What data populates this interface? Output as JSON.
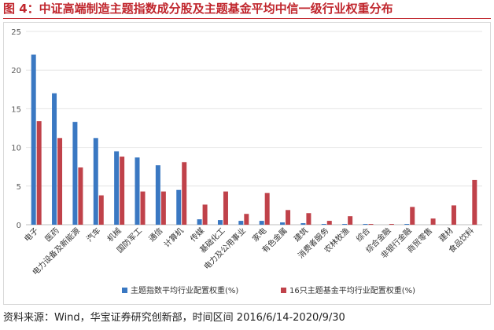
{
  "figure": {
    "title": "图 4：中证高端制造主题指数成分股及主题基金平均中信一级行业权重分布",
    "source": "资料来源：Wind，华宝证券研究创新部，时间区间 2016/6/14-2020/9/30"
  },
  "chart_data": {
    "type": "bar",
    "categories": [
      "电子",
      "医药",
      "电力设备及新能源",
      "汽车",
      "机械",
      "国防军工",
      "通信",
      "计算机",
      "传媒",
      "基础化工",
      "电力及公用事业",
      "家电",
      "有色金属",
      "建筑",
      "消费者服务",
      "农林牧渔",
      "综合",
      "综合金融",
      "非银行金融",
      "商贸零售",
      "建材",
      "食品饮料"
    ],
    "series": [
      {
        "name": "主题指数平均行业配置权重(%)",
        "color": "#3a78c2",
        "values": [
          22.0,
          17.0,
          13.3,
          11.2,
          9.5,
          8.7,
          7.7,
          4.5,
          0.7,
          0.6,
          0.5,
          0.5,
          0.3,
          0.2,
          0.1,
          0.1,
          0.1,
          0.0,
          0.1,
          0.0,
          0.0,
          0.0
        ]
      },
      {
        "name": "16只主题基金平均行业配置权重(%)",
        "color": "#c0424a",
        "values": [
          13.4,
          11.2,
          7.4,
          3.8,
          8.8,
          4.3,
          4.3,
          8.1,
          2.6,
          4.3,
          1.4,
          4.1,
          1.9,
          1.5,
          0.5,
          1.1,
          0.1,
          0.1,
          2.3,
          0.8,
          2.5,
          5.8
        ]
      }
    ],
    "ylim": [
      0,
      25
    ],
    "yticks": [
      0,
      5,
      10,
      15,
      20,
      25
    ],
    "grid": true,
    "legend": "bottom"
  }
}
